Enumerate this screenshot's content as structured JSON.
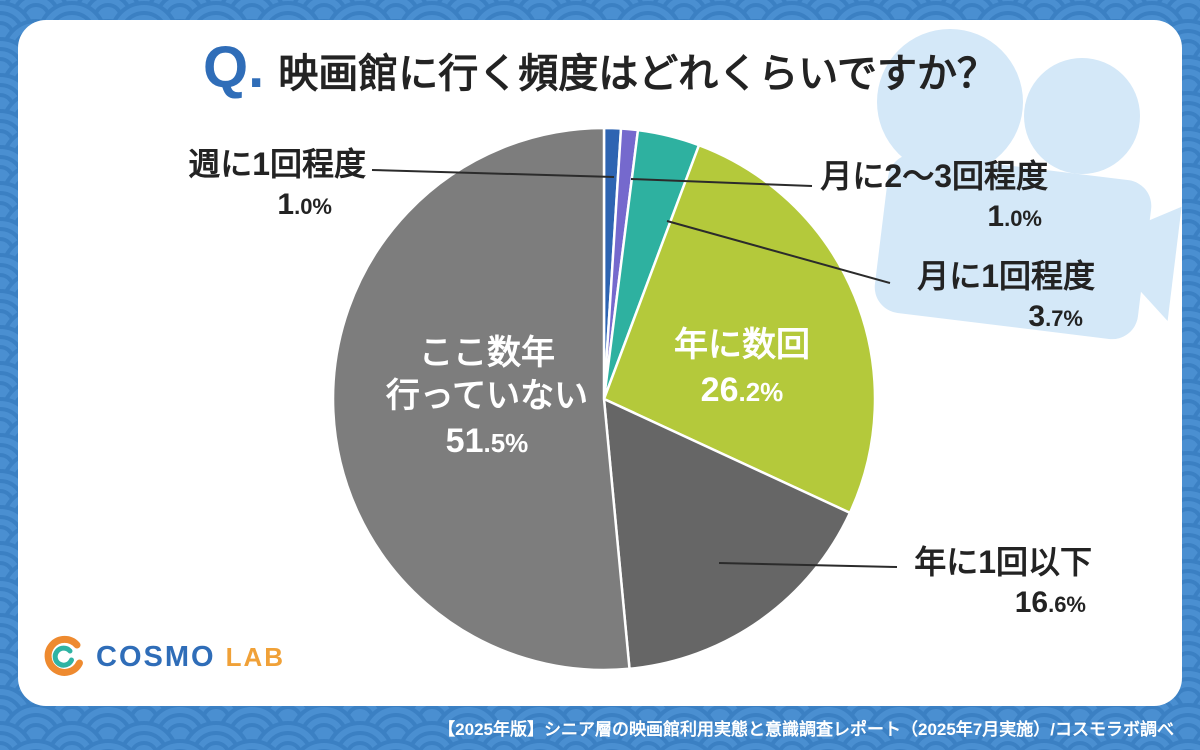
{
  "header": {
    "q_prefix": "Q.",
    "title": "映画館に行く頻度はどれくらいですか？"
  },
  "chart_data": {
    "type": "pie",
    "title": "映画館に行く頻度はどれくらいですか？",
    "unit": "percent",
    "rotation": "clockwise-from-top",
    "segments": [
      {
        "label": "週に1回程度",
        "value": 1.0,
        "pct": "1.0%",
        "color": "#2e64b2",
        "callout": "outside-top-left"
      },
      {
        "label": "月に2～3回程度",
        "value": 1.0,
        "pct": "1.0%",
        "color": "#7569cd",
        "callout": "outside-top-right"
      },
      {
        "label": "月に1回程度",
        "value": 3.7,
        "pct": "3.7%",
        "color": "#2eb1a0",
        "callout": "outside-right"
      },
      {
        "label": "年に数回",
        "value": 26.2,
        "pct": "26.2%",
        "color": "#b4c93b",
        "callout": "inside"
      },
      {
        "label": "年に1回以下",
        "value": 16.6,
        "pct": "16.6%",
        "color": "#666666",
        "callout": "outside-bottom-right"
      },
      {
        "label": "ここ数年行っていない",
        "label_line1": "ここ数年",
        "label_line2": "行っていない",
        "value": 51.5,
        "pct": "51.5%",
        "color": "#7d7d7d",
        "callout": "inside"
      }
    ]
  },
  "logo": {
    "icon": "cosmo-lab-mark",
    "text_cosmo": "COSMO",
    "text_lab": "LAB"
  },
  "footer": {
    "text": "【2025年版】シニア層の映画館利用実態と意識調査レポート（2025年7月実施）/コスモラボ調べ"
  },
  "colors": {
    "background_blue": "#4a8fd1",
    "pattern_blue": "#3b80c3",
    "card_white": "#ffffff",
    "accent_blue": "#2f6db8",
    "logo_orange": "#f0a138",
    "projector_light_blue": "#d4e8f8",
    "leader_line": "#2b2b2b"
  }
}
